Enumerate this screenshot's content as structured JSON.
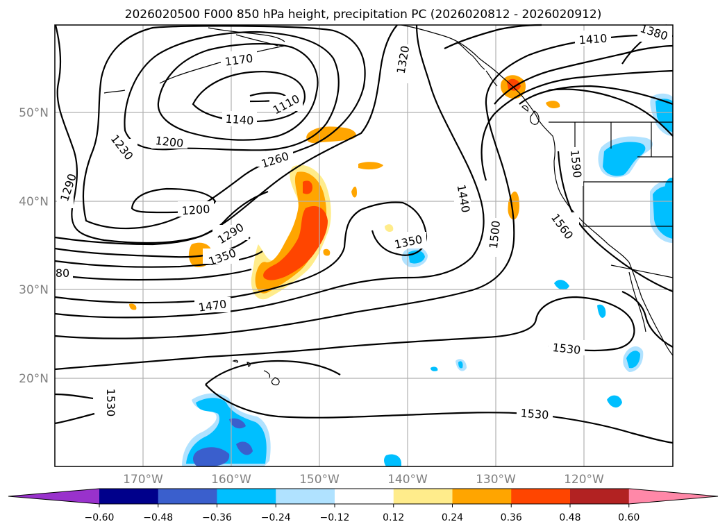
{
  "title": "2026020500 F000 850 hPa height, precipitation PC (2026020812 - 2026020912)",
  "lat_labels": [
    "50°N",
    "40°N",
    "30°N",
    "20°N"
  ],
  "lon_labels": [
    "170°W",
    "160°W",
    "150°W",
    "140°W",
    "130°W",
    "120°W"
  ],
  "contour_labels": [
    "1170",
    "1110",
    "1140",
    "1200",
    "1230",
    "1260",
    "1290",
    "1200",
    "1290",
    "1350",
    "1470",
    "1320",
    "1410",
    "1380",
    "1440",
    "1500",
    "1590",
    "1560",
    "1350",
    "1530",
    "1530",
    "1530",
    "80"
  ],
  "colorbar": {
    "ticks": [
      "−0.60",
      "−0.48",
      "−0.36",
      "−0.24",
      "−0.12",
      "0.12",
      "0.24",
      "0.36",
      "0.48",
      "0.60"
    ],
    "colors": [
      "#9932cc",
      "#00008b",
      "#3a5fcd",
      "#00bfff",
      "#b0e2ff",
      "#ffffff",
      "#ffec8b",
      "#ffa500",
      "#ff4500",
      "#b22222",
      "#ff88a8"
    ]
  }
}
